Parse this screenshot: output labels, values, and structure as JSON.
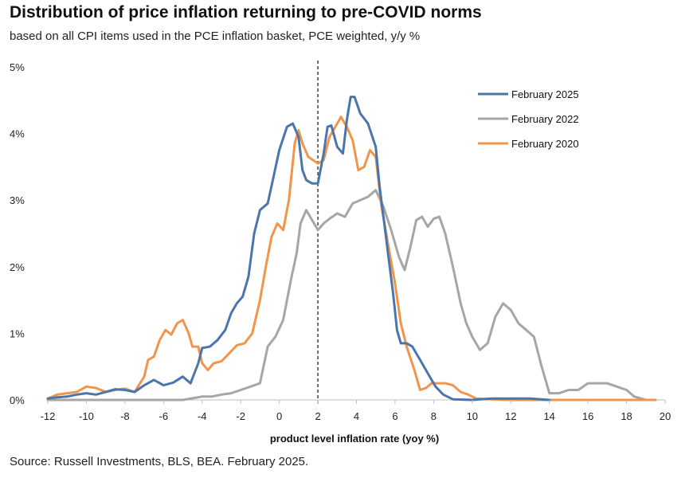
{
  "chart_data": {
    "type": "line",
    "title": "Distribution of price inflation returning to pre-COVID norms",
    "subtitle": "based on all CPI items used in the PCE inflation basket, PCE weighted, y/y %",
    "xlabel": "product level inflation rate (yoy %)",
    "ylabel": "",
    "xlim": [
      -12,
      20
    ],
    "ylim": [
      0,
      5
    ],
    "x_ticks": [
      "-12",
      "-10",
      "-8",
      "-6",
      "-4",
      "-2",
      "0",
      "2",
      "4",
      "6",
      "8",
      "10",
      "12",
      "14",
      "16",
      "18",
      "20"
    ],
    "y_ticks": [
      "0%",
      "1%",
      "2%",
      "3%",
      "4%",
      "5%"
    ],
    "reference_line": {
      "x": 2,
      "style": "dashed"
    },
    "grid": false,
    "legend_position": "top-right",
    "series": [
      {
        "name": "February 2025",
        "color": "#4A76AC",
        "points": [
          [
            -12,
            0.02
          ],
          [
            -11.5,
            0.04
          ],
          [
            -11,
            0.05
          ],
          [
            -10.5,
            0.08
          ],
          [
            -10,
            0.1
          ],
          [
            -9.5,
            0.08
          ],
          [
            -9,
            0.12
          ],
          [
            -8.5,
            0.16
          ],
          [
            -8,
            0.15
          ],
          [
            -7.5,
            0.12
          ],
          [
            -7,
            0.22
          ],
          [
            -6.5,
            0.3
          ],
          [
            -6,
            0.22
          ],
          [
            -5.5,
            0.26
          ],
          [
            -5,
            0.35
          ],
          [
            -4.6,
            0.25
          ],
          [
            -4.2,
            0.55
          ],
          [
            -4,
            0.78
          ],
          [
            -3.6,
            0.8
          ],
          [
            -3.2,
            0.9
          ],
          [
            -2.8,
            1.05
          ],
          [
            -2.5,
            1.3
          ],
          [
            -2.2,
            1.45
          ],
          [
            -1.9,
            1.55
          ],
          [
            -1.6,
            1.85
          ],
          [
            -1.3,
            2.5
          ],
          [
            -1,
            2.85
          ],
          [
            -0.6,
            2.95
          ],
          [
            -0.3,
            3.35
          ],
          [
            0,
            3.75
          ],
          [
            0.4,
            4.1
          ],
          [
            0.7,
            4.15
          ],
          [
            1,
            3.95
          ],
          [
            1.2,
            3.45
          ],
          [
            1.4,
            3.3
          ],
          [
            1.7,
            3.25
          ],
          [
            2,
            3.25
          ],
          [
            2.3,
            3.7
          ],
          [
            2.5,
            4.1
          ],
          [
            2.7,
            4.12
          ],
          [
            3,
            3.8
          ],
          [
            3.3,
            3.7
          ],
          [
            3.5,
            4.2
          ],
          [
            3.7,
            4.55
          ],
          [
            3.9,
            4.55
          ],
          [
            4.2,
            4.3
          ],
          [
            4.6,
            4.15
          ],
          [
            5,
            3.8
          ],
          [
            5.2,
            3.2
          ],
          [
            5.4,
            2.75
          ],
          [
            5.7,
            2.05
          ],
          [
            5.9,
            1.6
          ],
          [
            6.1,
            1.05
          ],
          [
            6.3,
            0.85
          ],
          [
            6.6,
            0.85
          ],
          [
            6.9,
            0.8
          ],
          [
            7.3,
            0.6
          ],
          [
            7.7,
            0.4
          ],
          [
            8.1,
            0.2
          ],
          [
            8.5,
            0.08
          ],
          [
            9,
            0.01
          ],
          [
            10,
            0.0
          ],
          [
            11,
            0.02
          ],
          [
            12,
            0.02
          ],
          [
            13,
            0.02
          ],
          [
            14,
            0.0
          ]
        ]
      },
      {
        "name": "February 2022",
        "color": "#A6A6A6",
        "points": [
          [
            -12,
            0.0
          ],
          [
            -11,
            0.0
          ],
          [
            -10,
            0.0
          ],
          [
            -9,
            0.0
          ],
          [
            -8,
            0.0
          ],
          [
            -7,
            0.0
          ],
          [
            -6,
            0.0
          ],
          [
            -5,
            0.0
          ],
          [
            -4,
            0.05
          ],
          [
            -3.5,
            0.05
          ],
          [
            -3,
            0.08
          ],
          [
            -2.5,
            0.1
          ],
          [
            -2,
            0.15
          ],
          [
            -1.5,
            0.2
          ],
          [
            -1,
            0.25
          ],
          [
            -0.6,
            0.8
          ],
          [
            -0.2,
            0.95
          ],
          [
            0.2,
            1.2
          ],
          [
            0.6,
            1.8
          ],
          [
            0.9,
            2.2
          ],
          [
            1.1,
            2.65
          ],
          [
            1.4,
            2.85
          ],
          [
            1.7,
            2.7
          ],
          [
            2,
            2.55
          ],
          [
            2.3,
            2.65
          ],
          [
            2.6,
            2.72
          ],
          [
            3,
            2.8
          ],
          [
            3.4,
            2.75
          ],
          [
            3.8,
            2.95
          ],
          [
            4.2,
            3.0
          ],
          [
            4.6,
            3.05
          ],
          [
            5,
            3.15
          ],
          [
            5.4,
            2.9
          ],
          [
            5.8,
            2.55
          ],
          [
            6.2,
            2.15
          ],
          [
            6.5,
            1.95
          ],
          [
            6.8,
            2.3
          ],
          [
            7.1,
            2.7
          ],
          [
            7.4,
            2.75
          ],
          [
            7.7,
            2.6
          ],
          [
            8,
            2.72
          ],
          [
            8.3,
            2.75
          ],
          [
            8.6,
            2.5
          ],
          [
            9,
            2.0
          ],
          [
            9.4,
            1.45
          ],
          [
            9.7,
            1.15
          ],
          [
            10,
            0.95
          ],
          [
            10.4,
            0.75
          ],
          [
            10.8,
            0.85
          ],
          [
            11.2,
            1.25
          ],
          [
            11.6,
            1.45
          ],
          [
            12,
            1.35
          ],
          [
            12.4,
            1.15
          ],
          [
            12.8,
            1.05
          ],
          [
            13.2,
            0.95
          ],
          [
            13.6,
            0.5
          ],
          [
            14,
            0.1
          ],
          [
            14.5,
            0.1
          ],
          [
            15,
            0.15
          ],
          [
            15.5,
            0.15
          ],
          [
            16,
            0.25
          ],
          [
            17,
            0.25
          ],
          [
            17.5,
            0.2
          ],
          [
            18,
            0.15
          ],
          [
            18.4,
            0.05
          ],
          [
            19,
            0.0
          ],
          [
            19.5,
            0.0
          ]
        ]
      },
      {
        "name": "February 2020",
        "color": "#F0954A",
        "points": [
          [
            -12,
            0.02
          ],
          [
            -11.5,
            0.08
          ],
          [
            -11,
            0.1
          ],
          [
            -10.5,
            0.12
          ],
          [
            -10,
            0.2
          ],
          [
            -9.5,
            0.18
          ],
          [
            -9,
            0.12
          ],
          [
            -8.5,
            0.15
          ],
          [
            -8,
            0.17
          ],
          [
            -7.5,
            0.12
          ],
          [
            -7,
            0.35
          ],
          [
            -6.8,
            0.6
          ],
          [
            -6.5,
            0.65
          ],
          [
            -6.2,
            0.9
          ],
          [
            -5.9,
            1.05
          ],
          [
            -5.6,
            0.98
          ],
          [
            -5.3,
            1.15
          ],
          [
            -5,
            1.2
          ],
          [
            -4.7,
            1.0
          ],
          [
            -4.5,
            0.8
          ],
          [
            -4.2,
            0.8
          ],
          [
            -4,
            0.55
          ],
          [
            -3.7,
            0.45
          ],
          [
            -3.4,
            0.55
          ],
          [
            -3,
            0.58
          ],
          [
            -2.6,
            0.7
          ],
          [
            -2.2,
            0.82
          ],
          [
            -1.8,
            0.85
          ],
          [
            -1.4,
            1.0
          ],
          [
            -1,
            1.5
          ],
          [
            -0.7,
            2.0
          ],
          [
            -0.4,
            2.45
          ],
          [
            -0.1,
            2.65
          ],
          [
            0.2,
            2.55
          ],
          [
            0.5,
            3.0
          ],
          [
            0.8,
            3.85
          ],
          [
            1,
            4.05
          ],
          [
            1.2,
            3.85
          ],
          [
            1.5,
            3.65
          ],
          [
            2,
            3.55
          ],
          [
            2.3,
            3.6
          ],
          [
            2.6,
            3.95
          ],
          [
            2.9,
            4.1
          ],
          [
            3.2,
            4.25
          ],
          [
            3.5,
            4.1
          ],
          [
            3.8,
            3.9
          ],
          [
            4.1,
            3.45
          ],
          [
            4.4,
            3.5
          ],
          [
            4.7,
            3.75
          ],
          [
            5,
            3.65
          ],
          [
            5.3,
            2.9
          ],
          [
            5.6,
            2.4
          ],
          [
            6,
            1.75
          ],
          [
            6.3,
            1.15
          ],
          [
            6.6,
            0.8
          ],
          [
            7,
            0.45
          ],
          [
            7.3,
            0.15
          ],
          [
            7.6,
            0.18
          ],
          [
            7.9,
            0.25
          ],
          [
            8.3,
            0.25
          ],
          [
            8.6,
            0.25
          ],
          [
            9,
            0.22
          ],
          [
            9.4,
            0.12
          ],
          [
            9.8,
            0.08
          ],
          [
            10.2,
            0.02
          ],
          [
            11,
            0.01
          ],
          [
            12,
            0.0
          ],
          [
            14,
            0.0
          ],
          [
            16,
            0.0
          ],
          [
            18,
            0.0
          ],
          [
            19.5,
            0.0
          ]
        ]
      }
    ],
    "source": "Source: Russell Investments, BLS, BEA. February 2025."
  }
}
